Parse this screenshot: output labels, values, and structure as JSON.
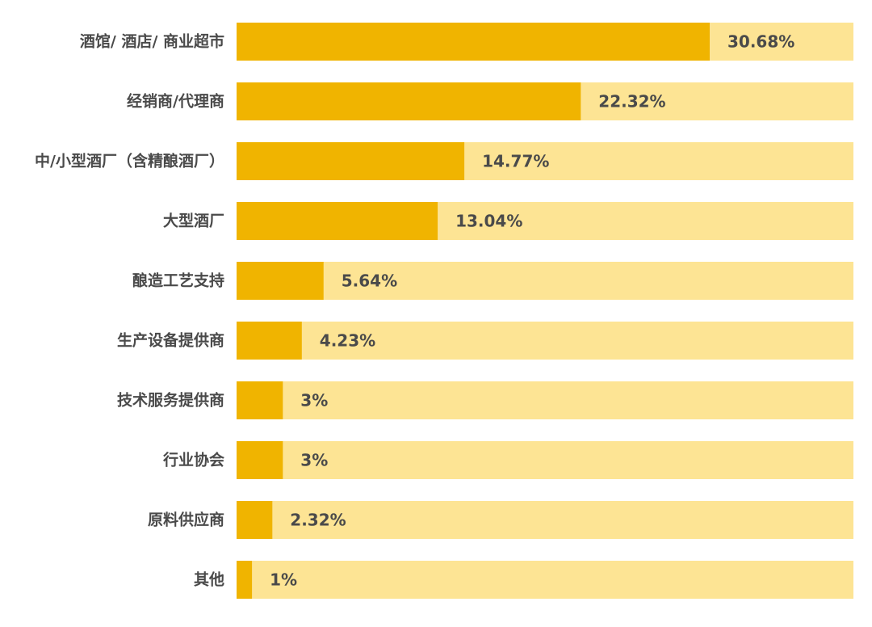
{
  "chart_data": {
    "type": "bar",
    "orientation": "horizontal",
    "categories": [
      "酒馆/ 酒店/ 商业超市",
      "经销商/代理商",
      "中/小型酒厂（含精酿酒厂）",
      "大型酒厂",
      "酿造工艺支持",
      "生产设备提供商",
      "技术服务提供商",
      "行业协会",
      "原料供应商",
      "其他"
    ],
    "values": [
      30.68,
      22.32,
      14.77,
      13.04,
      5.64,
      4.23,
      3,
      3,
      2.32,
      1
    ],
    "value_labels": [
      "30.68%",
      "22.32%",
      "14.77%",
      "13.04%",
      "5.64%",
      "4.23%",
      "3%",
      "3%",
      "2.32%",
      "1%"
    ],
    "xlim": [
      0,
      40
    ],
    "title": "",
    "xlabel": "",
    "ylabel": "",
    "grid": false,
    "colors": {
      "bar": "#f0b400",
      "track": "#fde494",
      "label": "#4a4a4a"
    }
  }
}
